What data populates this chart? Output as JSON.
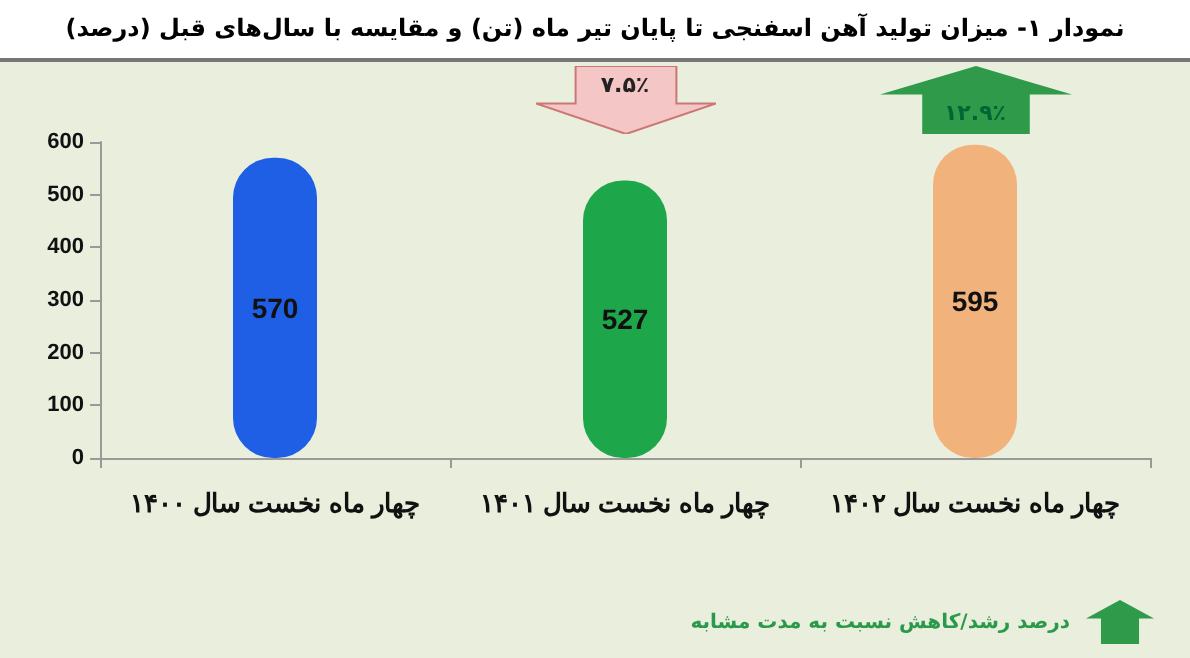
{
  "chart_data": {
    "type": "bar",
    "title": "نمودار ۱- میزان تولید آهن اسفنجی تا پایان تیر ماه (تن) و مقایسه با سال‌های قبل (درصد)",
    "categories": [
      "چهار ماه نخست سال ۱۴۰۰",
      "چهار ماه نخست سال ۱۴۰۱",
      "چهار ماه نخست سال ۱۴۰۲"
    ],
    "values": [
      570,
      527,
      595
    ],
    "colors": [
      "#1f5fe6",
      "#1ea64a",
      "#f2b27c"
    ],
    "data_labels": true,
    "ylim": [
      0,
      600
    ],
    "yticks": [
      0,
      100,
      200,
      300,
      400,
      500,
      600
    ],
    "grid": false,
    "annotations": [
      "۷.۵٪",
      "۱۲.۹٪",
      "درصد رشد/کاهش نسبت به مدت مشابه"
    ]
  }
}
